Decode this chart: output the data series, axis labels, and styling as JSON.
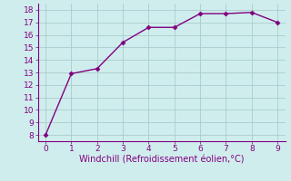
{
  "x": [
    0,
    1,
    2,
    3,
    4,
    5,
    6,
    7,
    8,
    9
  ],
  "y": [
    8.0,
    12.9,
    13.3,
    15.4,
    16.6,
    16.6,
    17.7,
    17.7,
    17.8,
    17.0
  ],
  "line_color": "#800080",
  "marker": "D",
  "marker_size": 2.5,
  "line_width": 1.0,
  "xlabel": "Windchill (Refroidissement éolien,°C)",
  "xlabel_fontsize": 7.0,
  "xlim": [
    -0.3,
    9.3
  ],
  "ylim": [
    7.5,
    18.5
  ],
  "yticks": [
    8,
    9,
    10,
    11,
    12,
    13,
    14,
    15,
    16,
    17,
    18
  ],
  "xticks": [
    0,
    1,
    2,
    3,
    4,
    5,
    6,
    7,
    8,
    9
  ],
  "grid_color": "#aacccc",
  "bg_color": "#d0eded",
  "tick_fontsize": 6.5,
  "spine_color": "#888888"
}
